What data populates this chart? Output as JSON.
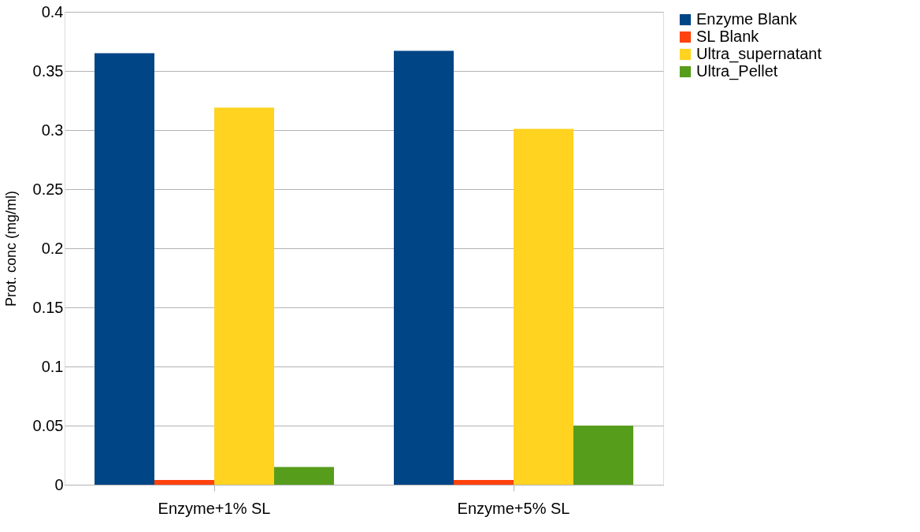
{
  "chart_data": {
    "type": "bar",
    "ylabel": "Prot. conc (mg/ml)",
    "categories": [
      "Enzyme+1% SL",
      "Enzyme+5% SL"
    ],
    "series": [
      {
        "name": "Enzyme Blank",
        "color": "#004586",
        "values": [
          0.365,
          0.367
        ]
      },
      {
        "name": "SL Blank",
        "color": "#ff420e",
        "values": [
          0.004,
          0.004
        ]
      },
      {
        "name": "Ultra_supernatant",
        "color": "#ffd320",
        "values": [
          0.319,
          0.301
        ]
      },
      {
        "name": "Ultra_Pellet",
        "color": "#579d1c",
        "values": [
          0.015,
          0.05
        ]
      }
    ],
    "ylim": [
      0,
      0.4
    ],
    "yticks": [
      0,
      0.05,
      0.1,
      0.15,
      0.2,
      0.25,
      0.3,
      0.35,
      0.4
    ],
    "grid": "y",
    "legend": "right"
  }
}
